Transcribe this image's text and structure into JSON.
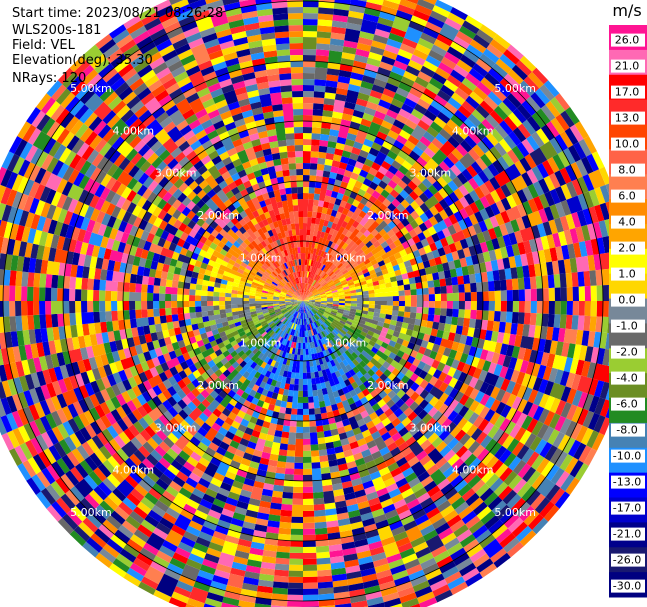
{
  "info": {
    "start_time": "Start time: 2023/08/21 08:26:28",
    "instrument": "WLS200s-181",
    "field": "Field: VEL",
    "elevation": "Elevation(deg): 35.30",
    "nrays": "NRays: 120"
  },
  "chart_data": {
    "type": "heatmap",
    "projection": "polar-ppi",
    "field": "VEL",
    "units": "m/s",
    "nrays": 120,
    "range_rings_km": [
      1.0,
      2.0,
      3.0,
      4.0,
      5.0
    ],
    "range_ring_labels": [
      "1.00km",
      "2.00km",
      "3.00km",
      "4.00km",
      "5.00km"
    ],
    "max_range_km": 5.5,
    "colorbar": {
      "title": "m/s",
      "tick_labels": [
        "26.0",
        "21.0",
        "17.0",
        "13.0",
        "10.0",
        "8.0",
        "6.0",
        "4.0",
        "2.0",
        "1.0",
        "0.0",
        "-1.0",
        "-2.0",
        "-4.0",
        "-6.0",
        "-8.0",
        "-10.0",
        "-13.0",
        "-17.0",
        "-21.0",
        "-26.0",
        "-30.0"
      ],
      "colors": [
        "#ff1493",
        "#ff69b4",
        "#ff0000",
        "#ff2a2a",
        "#ff4500",
        "#ff6347",
        "#ff7f50",
        "#ff8c00",
        "#ffa500",
        "#ffff00",
        "#ffd700",
        "#778899",
        "#696969",
        "#9acd32",
        "#6b8e23",
        "#228b22",
        "#4682b4",
        "#1e90ff",
        "#0000ff",
        "#0000cd",
        "#00008b",
        "#191970",
        "#000080"
      ]
    },
    "pattern": "Near-field (< ~1.5 km): warm/positive velocities (red, orange, yellow) on the north side, cool/negative velocities (green, blue) on the south side; beyond ~2 km the field is noise with mixed colors."
  }
}
